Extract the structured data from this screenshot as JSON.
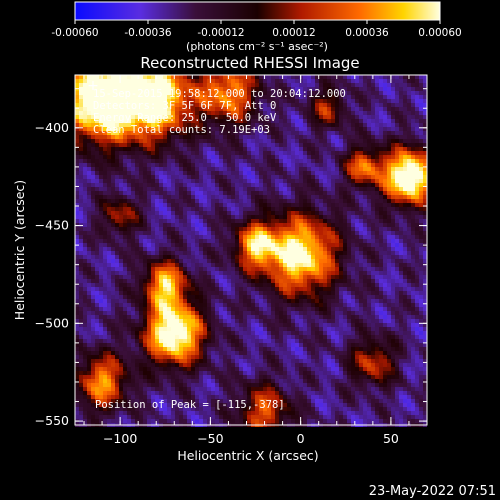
{
  "colorbar": {
    "tick_labels": [
      "-0.00060",
      "-0.00036",
      "-0.00012",
      "0.00012",
      "0.00036",
      "0.00060"
    ],
    "unit_label": "(photons cm⁻² s⁻¹ asec⁻²)",
    "colors": [
      "#0a0aff",
      "#6a2bd6",
      "#2a0a1a",
      "#b01a00",
      "#ff6a00",
      "#ffd400",
      "#ffffe0"
    ]
  },
  "chart_data": {
    "type": "heatmap",
    "title": "Reconstructed RHESSI Image",
    "xlabel": "Heliocentric X (arcsec)",
    "ylabel": "Heliocentric Y (arcsec)",
    "xlim": [
      -125,
      70
    ],
    "ylim": [
      -552,
      -373
    ],
    "x_ticks": [
      -100,
      -50,
      0,
      50
    ],
    "y_ticks": [
      -400,
      -450,
      -500,
      -550
    ],
    "x_tick_labels": [
      "−100",
      "−50",
      "0",
      "50"
    ],
    "y_tick_labels": [
      "−400",
      "−450",
      "−500",
      "−550"
    ],
    "value_range": [
      -0.0006,
      0.0006
    ],
    "peak_position": [
      -115,
      -378
    ],
    "annotations": [
      "15-Sep-2015 19:58:12.000 to 20:04:12.000",
      "Detectors: 3F 5F 6F 7F, Att 0",
      "Energy Range: 25.0 - 50.0 keV",
      "Clean   Total counts: 7.19E+03"
    ],
    "peak_label": "Position of Peak = [-115,-378]"
  },
  "footer": {
    "timestamp": "23-May-2022 07:51"
  }
}
